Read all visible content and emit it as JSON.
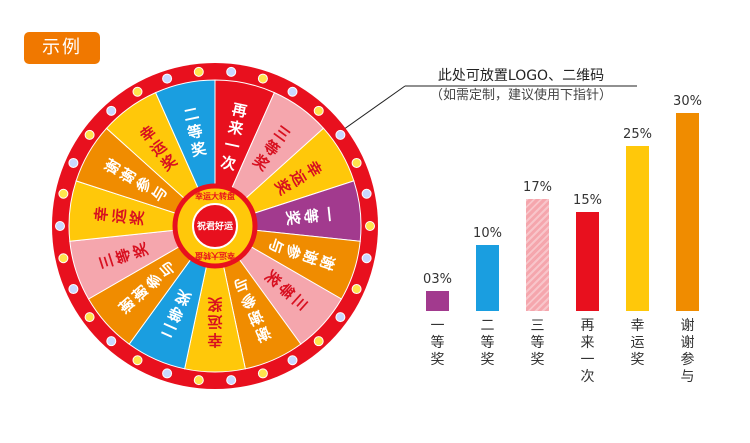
{
  "badge": "示例",
  "note": {
    "line1": "此处可放置LOGO、二维码",
    "line2": "（如需定制，建议使用下指针）"
  },
  "wheel": {
    "segments": [
      {
        "label": "再来一次",
        "color": "#e8101e"
      },
      {
        "label": "三等奖",
        "color": "#f5a6ad"
      },
      {
        "label": "幸运奖",
        "color": "#ffc80a"
      },
      {
        "label": "一等奖",
        "color": "#a23a8e"
      },
      {
        "label": "谢谢参与",
        "color": "#f08c00"
      },
      {
        "label": "三等奖",
        "color": "#f5a6ad"
      },
      {
        "label": "谢谢参与",
        "color": "#f08c00"
      },
      {
        "label": "幸运奖",
        "color": "#ffc80a"
      },
      {
        "label": "二等奖",
        "color": "#1a9ee0"
      },
      {
        "label": "谢谢参与",
        "color": "#f08c00"
      },
      {
        "label": "三等奖",
        "color": "#f5a6ad"
      },
      {
        "label": "幸运奖",
        "color": "#ffc80a"
      },
      {
        "label": "谢谢参与",
        "color": "#f08c00"
      },
      {
        "label": "幸运奖",
        "color": "#ffc80a"
      },
      {
        "label": "二等奖",
        "color": "#1a9ee0"
      }
    ],
    "hub": {
      "top": "幸运大转盘",
      "middle": "祝君好运",
      "ring": "幸运大转盘"
    },
    "rim_color": "#e8101e"
  },
  "chart_data": {
    "type": "bar",
    "categories": [
      "一等奖",
      "二等奖",
      "三等奖",
      "再来一次",
      "幸运奖",
      "谢谢参与"
    ],
    "values": [
      3,
      10,
      17,
      15,
      25,
      30
    ],
    "labels": [
      "03%",
      "10%",
      "17%",
      "15%",
      "25%",
      "30%"
    ],
    "colors": [
      "#a23a8e",
      "#1a9ee0",
      "#f5a6ad",
      "#e8101e",
      "#ffc80a",
      "#f08c00"
    ],
    "ylim": [
      0,
      30
    ]
  }
}
